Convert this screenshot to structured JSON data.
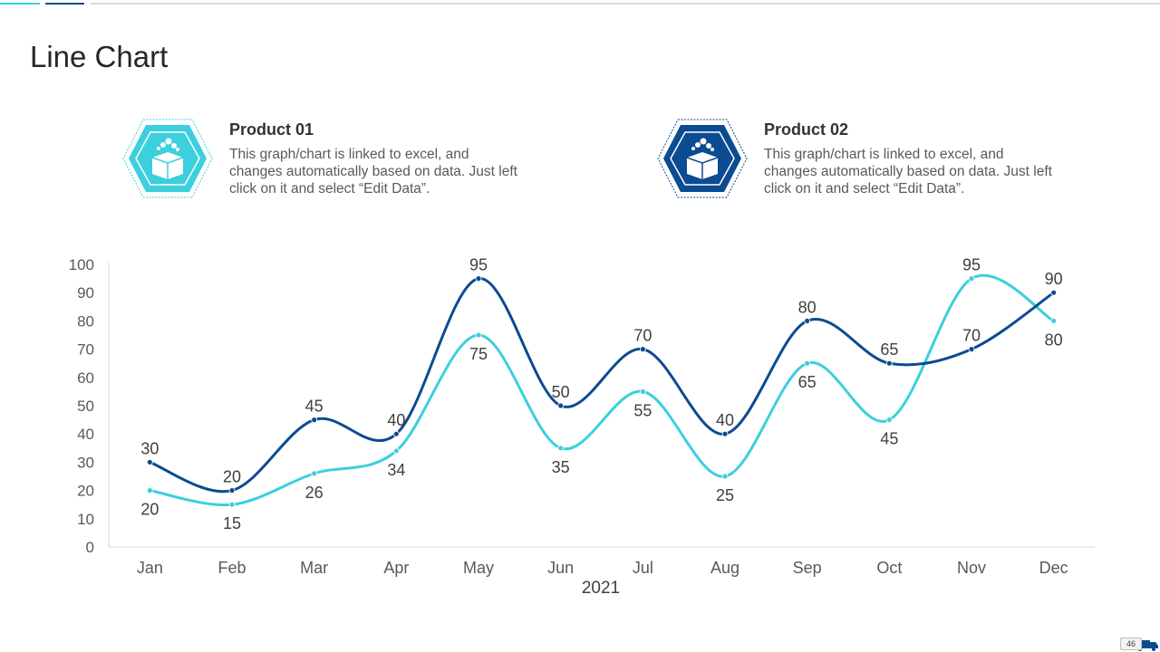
{
  "page": {
    "title": "Line Chart",
    "page_number": "46"
  },
  "products": [
    {
      "name": "Product 01",
      "description": "This graph/chart is linked to excel, and changes automatically based on data. Just left click on it and select “Edit Data”.",
      "color": "#3ccfdd",
      "icon": "box-icon"
    },
    {
      "name": "Product 02",
      "description": "This graph/chart is linked to excel, and changes automatically based on data. Just left click on it and select “Edit Data”.",
      "color": "#0b4b91",
      "icon": "box-icon"
    }
  ],
  "chart_data": {
    "type": "line",
    "title": "",
    "xlabel": "2021",
    "ylabel": "",
    "categories": [
      "Jan",
      "Feb",
      "Mar",
      "Apr",
      "May",
      "Jun",
      "Jul",
      "Aug",
      "Sep",
      "Oct",
      "Nov",
      "Dec"
    ],
    "ylim": [
      0,
      100
    ],
    "yticks": [
      0,
      10,
      20,
      30,
      40,
      50,
      60,
      70,
      80,
      90,
      100
    ],
    "grid": false,
    "smooth": true,
    "series": [
      {
        "name": "Product 01",
        "color": "#3ccfdd",
        "values": [
          20,
          15,
          26,
          34,
          75,
          35,
          55,
          25,
          65,
          45,
          95,
          80
        ],
        "label_position": [
          "below",
          "below",
          "below",
          "below",
          "below",
          "below",
          "below",
          "below",
          "below",
          "below",
          "above",
          "below"
        ]
      },
      {
        "name": "Product 02",
        "color": "#0b4b91",
        "values": [
          30,
          20,
          45,
          40,
          95,
          50,
          70,
          40,
          80,
          65,
          70,
          90
        ],
        "label_position": [
          "above",
          "above",
          "above",
          "above",
          "above",
          "above",
          "above",
          "above",
          "above",
          "above",
          "above",
          "above"
        ]
      }
    ]
  }
}
